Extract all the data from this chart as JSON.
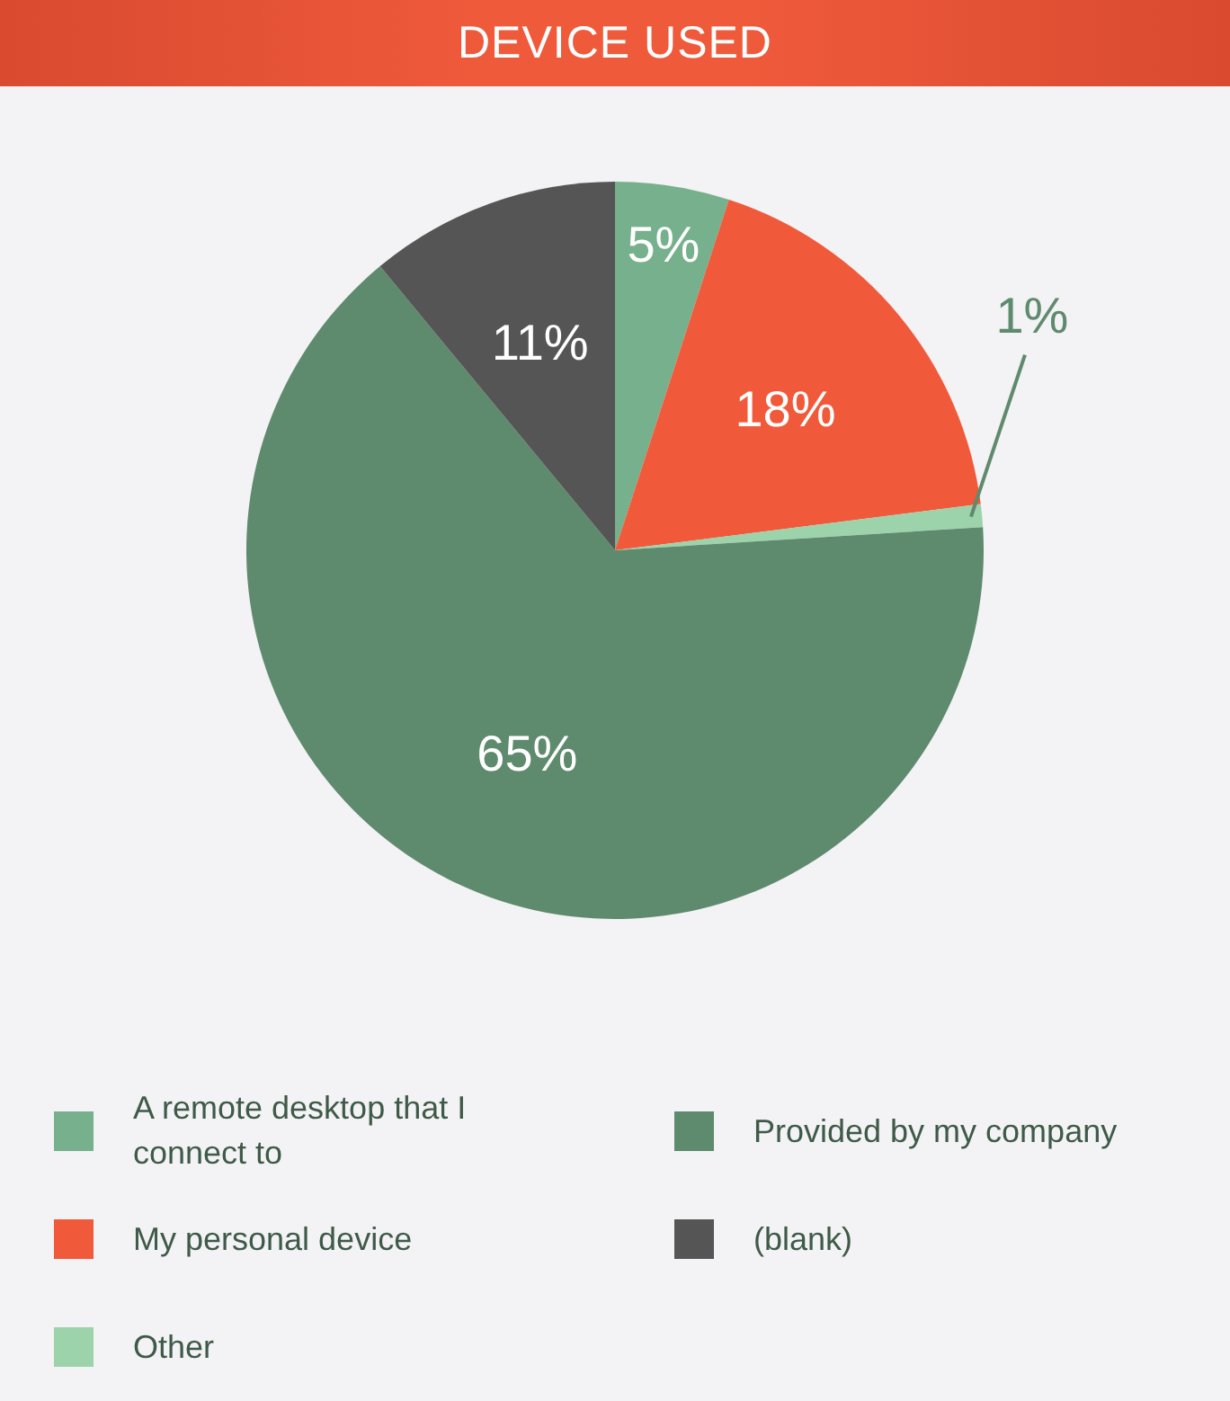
{
  "chart_data": {
    "type": "pie",
    "title": "DEVICE USED",
    "categories": [
      "A remote desktop that I connect to",
      "My personal device",
      "Other",
      "Provided by my company",
      "(blank)"
    ],
    "values": [
      5,
      18,
      1,
      65,
      11
    ],
    "value_labels": [
      "5%",
      "18%",
      "1%",
      "65%",
      "11%"
    ],
    "colors": [
      "#77b08c",
      "#f05a3a",
      "#9dd3ab",
      "#5e8a6d",
      "#555556"
    ],
    "legend": "bottom"
  }
}
